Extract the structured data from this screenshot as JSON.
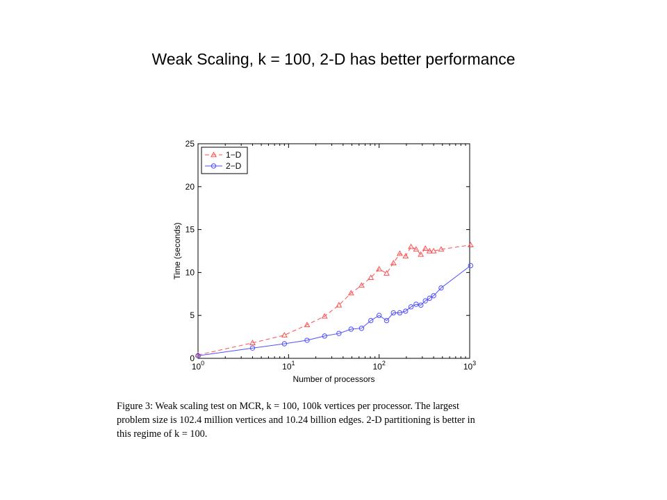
{
  "slide": {
    "title": "Weak Scaling, k = 100, 2-D has better performance"
  },
  "chart_data": {
    "type": "line",
    "xscale": "log",
    "xlim": [
      1,
      1000
    ],
    "ylim": [
      0,
      25
    ],
    "xlabel": "Number of processors",
    "ylabel": "Time (seconds)",
    "x_ticks": [
      {
        "base": "10",
        "exp": "0",
        "value": 1
      },
      {
        "base": "10",
        "exp": "1",
        "value": 10
      },
      {
        "base": "10",
        "exp": "2",
        "value": 100
      },
      {
        "base": "10",
        "exp": "3",
        "value": 1000
      }
    ],
    "y_ticks": [
      "0",
      "5",
      "10",
      "15",
      "20",
      "25"
    ],
    "grid": false,
    "legend_position": "top-left",
    "series": [
      {
        "name": "1−D",
        "color": "#ff4d4d",
        "marker": "triangle",
        "line_style": "dashed",
        "x": [
          1,
          4,
          9,
          16,
          25,
          36,
          49,
          64,
          81,
          100,
          121,
          144,
          169,
          196,
          225,
          256,
          289,
          324,
          361,
          400,
          484,
          1024
        ],
        "y": [
          0.4,
          1.8,
          2.7,
          3.9,
          4.9,
          6.2,
          7.6,
          8.5,
          9.4,
          10.4,
          9.9,
          11.1,
          12.2,
          11.9,
          13.0,
          12.7,
          12.1,
          12.8,
          12.5,
          12.5,
          12.7,
          13.2
        ]
      },
      {
        "name": "2−D",
        "color": "#4d4dff",
        "marker": "circle",
        "line_style": "solid",
        "x": [
          1,
          4,
          9,
          16,
          25,
          36,
          49,
          64,
          81,
          100,
          121,
          144,
          169,
          196,
          225,
          256,
          289,
          324,
          361,
          400,
          484,
          1024
        ],
        "y": [
          0.3,
          1.2,
          1.7,
          2.1,
          2.6,
          2.9,
          3.4,
          3.5,
          4.4,
          5.0,
          4.4,
          5.3,
          5.3,
          5.5,
          6.0,
          6.3,
          6.2,
          6.7,
          7.0,
          7.3,
          8.2,
          10.8
        ]
      }
    ]
  },
  "caption": {
    "lines": [
      "Figure 3:  Weak scaling test on MCR, k = 100, 100k vertices per processor.  The largest",
      "problem size is 102.4 million vertices and 10.24 billion edges.  2-D partitioning is better in",
      "this regime of k = 100."
    ]
  }
}
